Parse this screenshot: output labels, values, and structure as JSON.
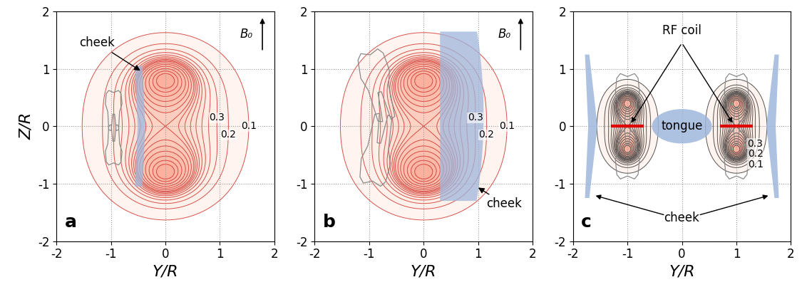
{
  "chart_data": [
    {
      "type": "contour",
      "panel_label": "a",
      "xlabel": "Y/R",
      "ylabel": "Z/R",
      "xlim": [
        -2,
        2
      ],
      "ylim": [
        -2,
        2
      ],
      "xticks": [
        -2,
        -1,
        0,
        1,
        2
      ],
      "yticks": [
        -2,
        -1,
        0,
        1,
        2
      ],
      "grid": true,
      "field_label": "B₀",
      "coils": [
        {
          "y": 0,
          "z": [
            -0.8,
            0.8
          ]
        }
      ],
      "levels": [
        0.1,
        0.2,
        0.3,
        0.4,
        0.5,
        0.6,
        0.7,
        0.8,
        0.9,
        1.0,
        1.2,
        1.5,
        2,
        3,
        5,
        10
      ],
      "labeled_levels": [
        0.3,
        0.2,
        0.1
      ],
      "annotations": [
        "cheek"
      ]
    },
    {
      "type": "contour",
      "panel_label": "b",
      "xlabel": "Y/R",
      "xlim": [
        -2,
        2
      ],
      "ylim": [
        -2,
        2
      ],
      "xticks": [
        -2,
        -1,
        0,
        1,
        2
      ],
      "yticks": [
        -2,
        -1,
        0,
        1,
        2
      ],
      "grid": true,
      "field_label": "B₀",
      "coils": [
        {
          "y": 0,
          "z": [
            -0.8,
            0.8
          ]
        }
      ],
      "levels": [
        0.1,
        0.2,
        0.3,
        0.4,
        0.5,
        0.6,
        0.7,
        0.8,
        0.9,
        1.0,
        1.2,
        1.5,
        2,
        3,
        5,
        10
      ],
      "labeled_levels": [
        0.3,
        0.2,
        0.1
      ],
      "annotations": [
        "cheek"
      ]
    },
    {
      "type": "contour",
      "panel_label": "c",
      "xlabel": "Y/R",
      "xlim": [
        -2,
        2
      ],
      "ylim": [
        -2,
        2
      ],
      "xticks": [
        -2,
        -1,
        0,
        1,
        2
      ],
      "yticks": [
        -2,
        -1,
        0,
        1,
        2
      ],
      "grid": true,
      "coils": [
        {
          "y": -1,
          "z": [
            -0.4,
            0.4
          ]
        },
        {
          "y": 1,
          "z": [
            -0.4,
            0.4
          ]
        }
      ],
      "levels": [
        0.1,
        0.2,
        0.3,
        0.4,
        0.5,
        0.6,
        0.7,
        0.8,
        0.9,
        1.0,
        1.2,
        1.5,
        2,
        3,
        5,
        10
      ],
      "labeled_levels": [
        0.3,
        0.2,
        0.1
      ],
      "annotations": [
        "RF coil",
        "tongue",
        "cheek"
      ]
    }
  ]
}
